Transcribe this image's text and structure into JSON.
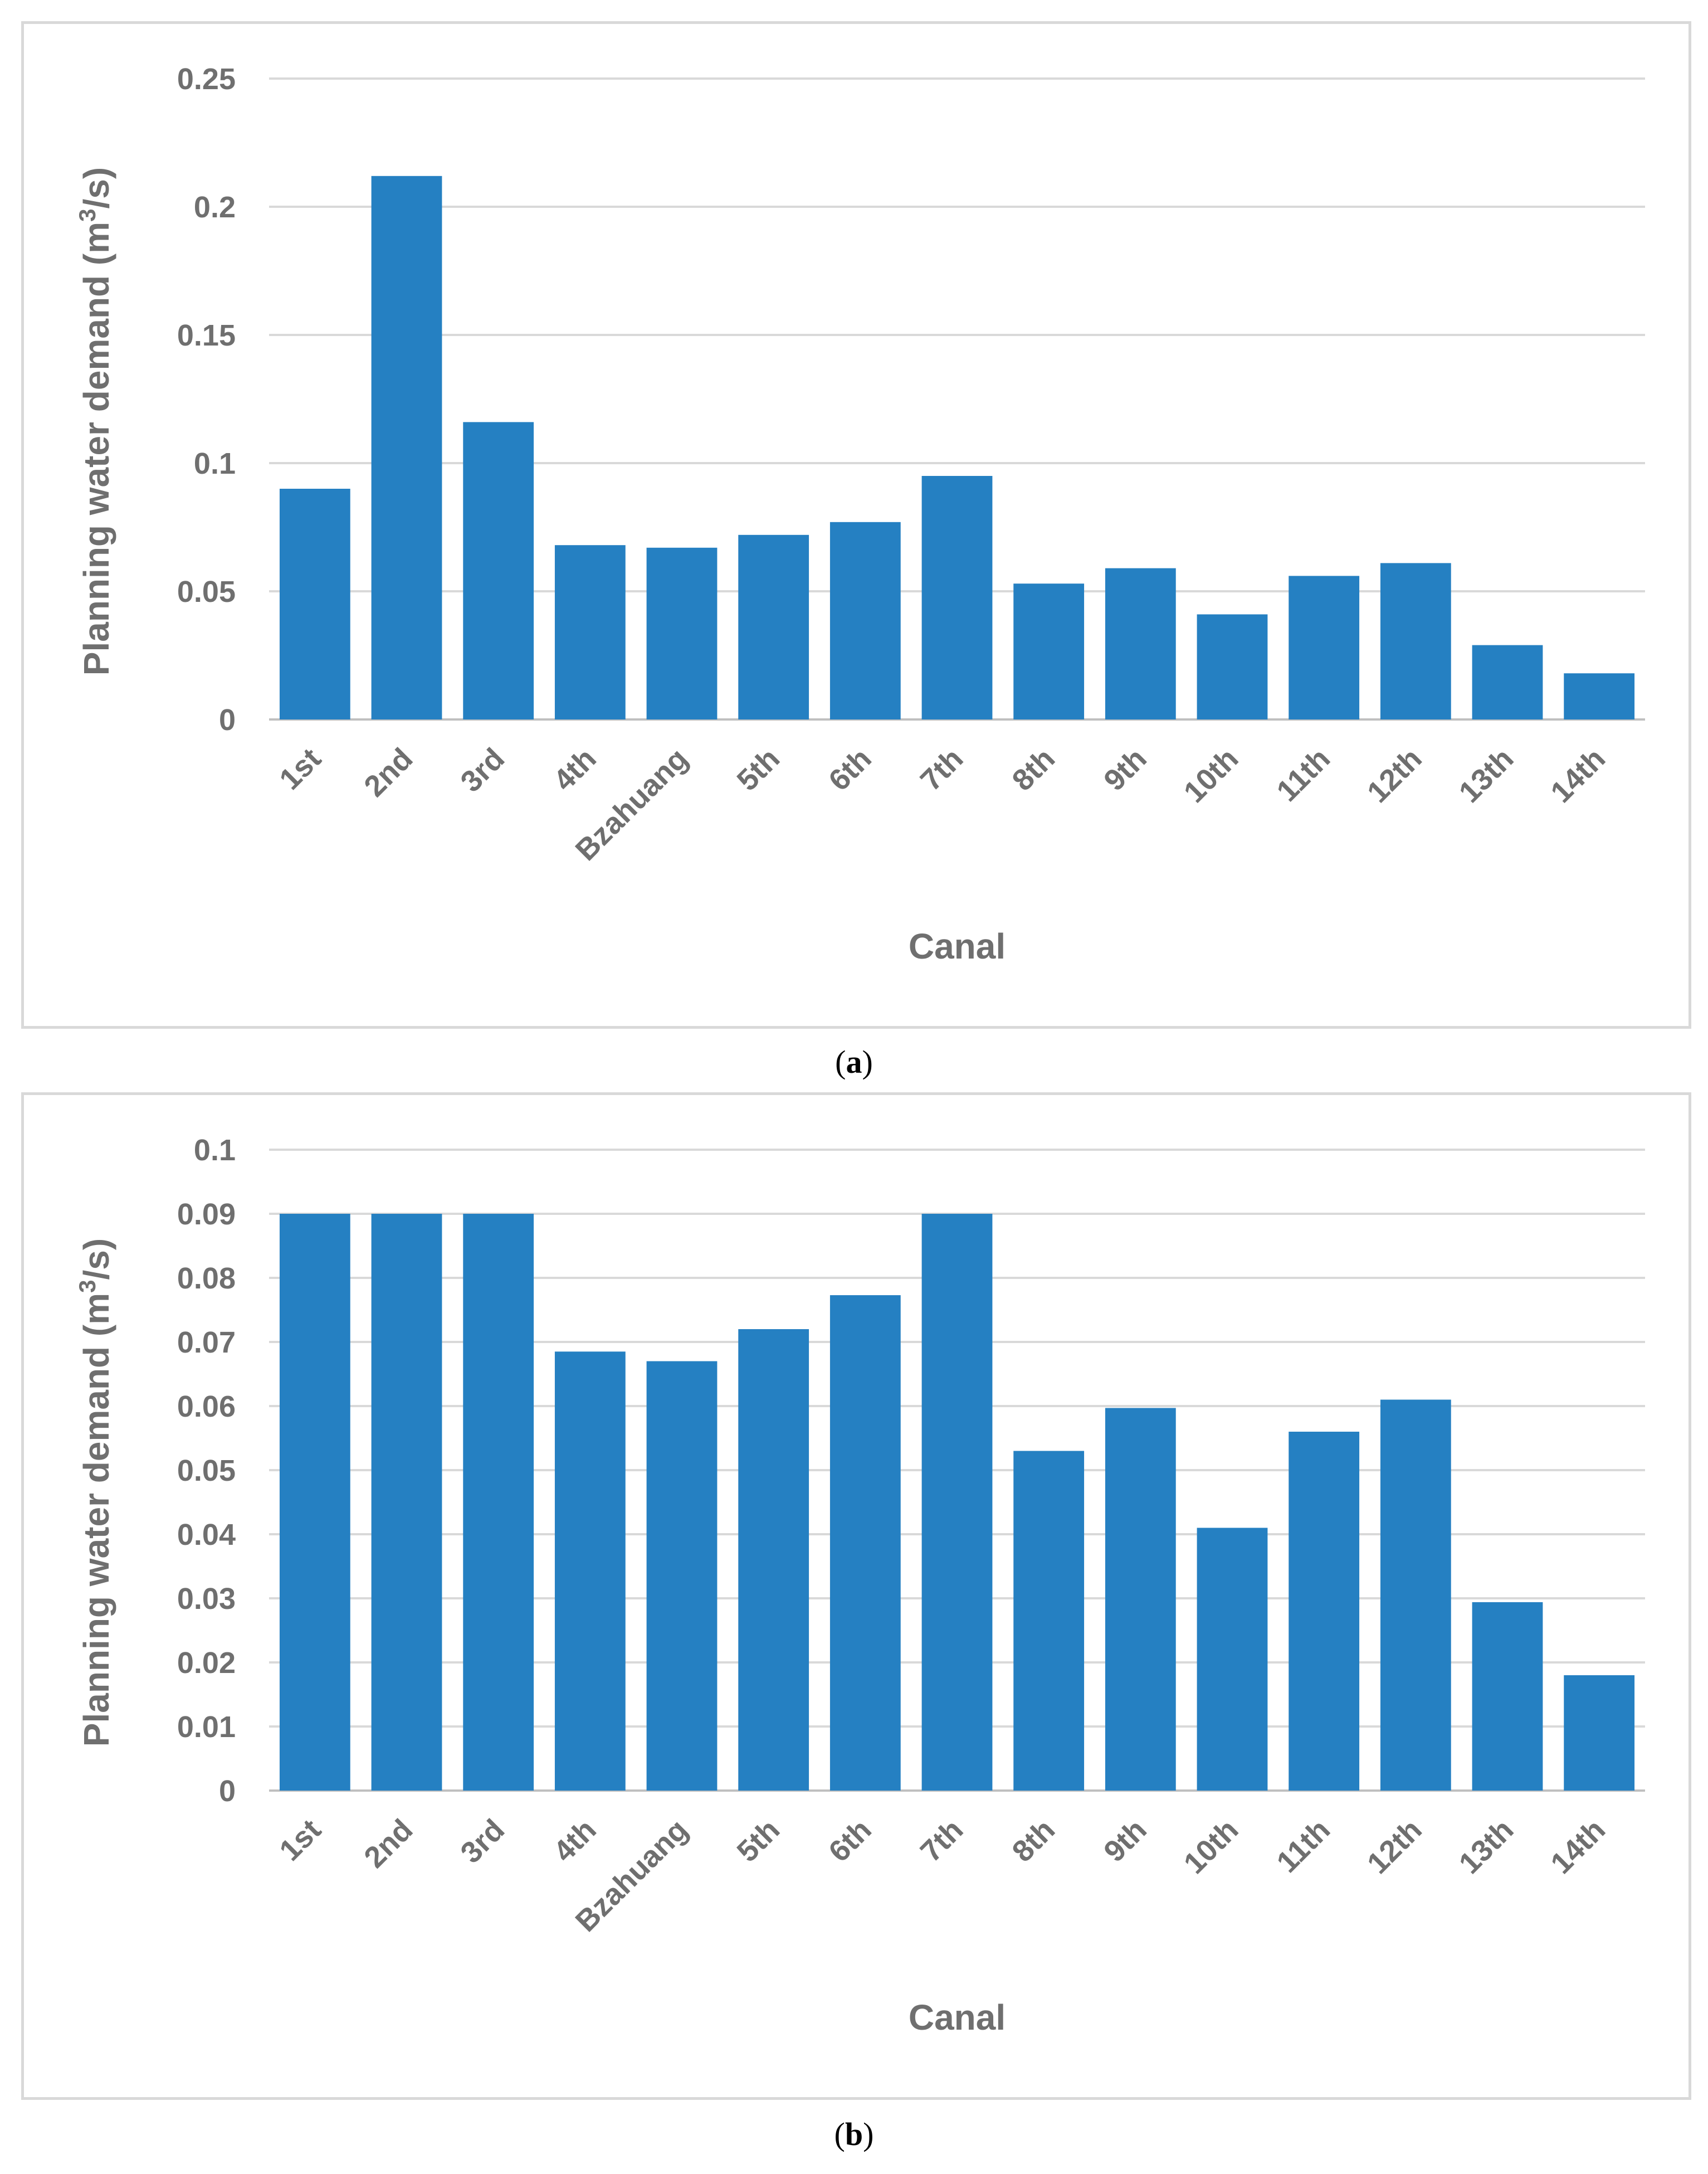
{
  "chart_data": [
    {
      "id": "a",
      "type": "bar",
      "caption_letter": "a",
      "categories": [
        "1st",
        "2nd",
        "3rd",
        "4th",
        "Bzahuang",
        "5th",
        "6th",
        "7th",
        "8th",
        "9th",
        "10th",
        "11th",
        "12th",
        "13th",
        "14th"
      ],
      "values": [
        0.09,
        0.212,
        0.116,
        0.068,
        0.067,
        0.072,
        0.077,
        0.095,
        0.053,
        0.059,
        0.041,
        0.056,
        0.061,
        0.029,
        0.018
      ],
      "yticks": [
        "0",
        "0.05",
        "0.1",
        "0.15",
        "0.2",
        "0.25"
      ],
      "ylim": [
        0,
        0.25
      ],
      "xlabel": "Canal",
      "ylabel_main": "Planning water demand (m",
      "ylabel_sup": "3",
      "ylabel_end": "/s)",
      "bar_color": "#2580c2",
      "grid": true
    },
    {
      "id": "b",
      "type": "bar",
      "caption_letter": "b",
      "categories": [
        "1st",
        "2nd",
        "3rd",
        "4th",
        "Bzahuang",
        "5th",
        "6th",
        "7th",
        "8th",
        "9th",
        "10th",
        "11th",
        "12th",
        "13th",
        "14th"
      ],
      "values": [
        0.09,
        0.09,
        0.09,
        0.0685,
        0.067,
        0.072,
        0.0773,
        0.09,
        0.053,
        0.0597,
        0.041,
        0.056,
        0.061,
        0.0294,
        0.018
      ],
      "yticks": [
        "0",
        "0.01",
        "0.02",
        "0.03",
        "0.04",
        "0.05",
        "0.06",
        "0.07",
        "0.08",
        "0.09",
        "0.1"
      ],
      "ylim": [
        0,
        0.1
      ],
      "xlabel": "Canal",
      "ylabel_main": "Planning water demand (m",
      "ylabel_sup": "3",
      "ylabel_end": "/s)",
      "bar_color": "#2580c2",
      "grid": true
    }
  ]
}
